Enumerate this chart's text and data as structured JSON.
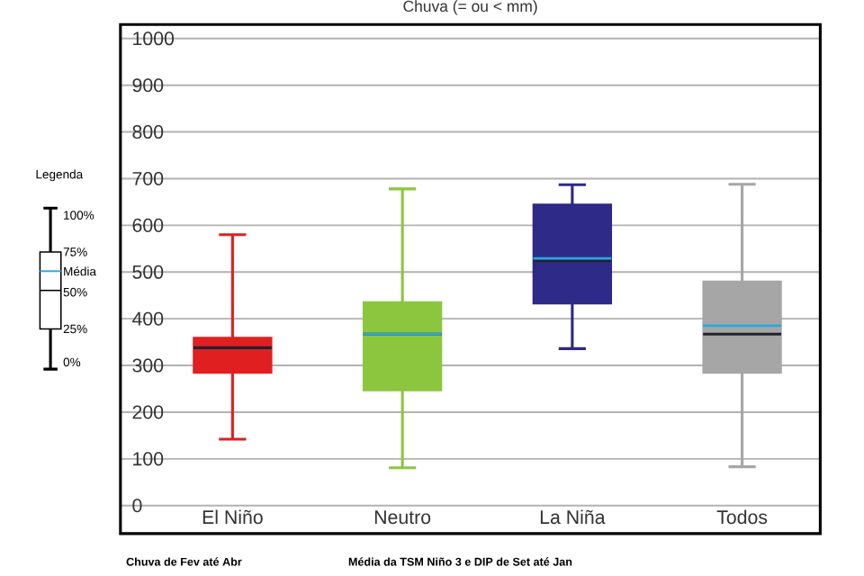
{
  "chart_data": {
    "type": "box",
    "title": "Chuva (= ou < mm)",
    "categories": [
      "El Niño",
      "Neutro",
      "La Niña",
      "Todos"
    ],
    "colors": [
      "#e02020",
      "#8cc63f",
      "#2e2a87",
      "#a6a6a6"
    ],
    "boxes": [
      {
        "low": 142,
        "q1": 284,
        "median": 338,
        "q3": 360,
        "high": 580
      },
      {
        "low": 81,
        "q1": 246,
        "median": 367,
        "q3": 436,
        "high": 678,
        "mean": 367
      },
      {
        "low": 336,
        "q1": 432,
        "median": 524,
        "q3": 645,
        "high": 687,
        "mean": 529
      },
      {
        "low": 83,
        "q1": 284,
        "median": 367,
        "q3": 480,
        "high": 688,
        "mean": 385
      }
    ],
    "ylim": [
      -60,
      1030
    ],
    "yticks": [
      0,
      100,
      200,
      300,
      400,
      500,
      600,
      700,
      800,
      900,
      1000
    ],
    "grid": "y",
    "annotations": [
      "Legenda",
      "100%",
      "75%",
      "Média",
      "50%",
      "25%",
      "0%",
      "Chuva de Fev até Abr",
      "Média da TSM Niño 3 e DIP de Set até Jan"
    ]
  }
}
